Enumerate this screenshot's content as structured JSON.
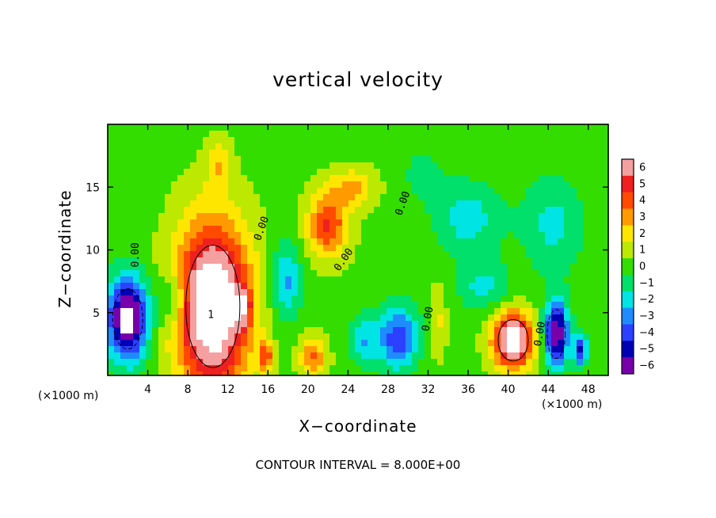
{
  "chart_data": {
    "type": "heatmap",
    "title": "vertical velocity",
    "xlabel": "X−coordinate",
    "ylabel": "Z−coordinate",
    "x_unit_left": "(×1000 m)",
    "x_unit_right": "(×1000 m)",
    "footer": "CONTOUR INTERVAL = 8.000E+00",
    "xlim": [
      0,
      50
    ],
    "ylim": [
      0,
      20
    ],
    "x_ticks": [
      4,
      8,
      12,
      16,
      20,
      24,
      28,
      32,
      36,
      40,
      44,
      48
    ],
    "y_ticks": [
      5,
      10,
      15
    ],
    "colorbar": {
      "labels": [
        "6",
        "5",
        "4",
        "3",
        "2",
        "1",
        "0",
        "−1",
        "−2",
        "−3",
        "−4",
        "−5",
        "−6"
      ],
      "values": [
        6,
        5,
        4,
        3,
        2,
        1,
        0,
        -1,
        -2,
        -3,
        -4,
        -5,
        -6
      ],
      "colors": [
        "#f4a0a0",
        "#ef2020",
        "#ff4a00",
        "#ff9a00",
        "#ffe600",
        "#bde800",
        "#33dd00",
        "#00e06a",
        "#00e4e4",
        "#1e8cff",
        "#2c40ff",
        "#0000b4",
        "#7800aa"
      ]
    },
    "contour_labels": [
      {
        "text": "0.00",
        "x": 2.8,
        "y": 9.6,
        "angle": -90
      },
      {
        "text": "0.00",
        "x": 15.4,
        "y": 11.7,
        "angle": -70
      },
      {
        "text": "0.00",
        "x": 23.6,
        "y": 9.2,
        "angle": -55
      },
      {
        "text": "0.00",
        "x": 29.5,
        "y": 13.7,
        "angle": -70
      },
      {
        "text": "0.00",
        "x": 32.0,
        "y": 4.5,
        "angle": -80
      },
      {
        "text": "0.00",
        "x": 43.2,
        "y": 3.3,
        "angle": -80
      },
      {
        "text": "1",
        "x": 10.3,
        "y": 4.8,
        "angle": 0
      }
    ],
    "features": [
      {
        "type": "updraft",
        "x": 10.5,
        "y": 5.5,
        "rx": 3.6,
        "ry": 6.5,
        "value": 9
      },
      {
        "type": "updraft",
        "x": 40.5,
        "y": 2.8,
        "rx": 2.0,
        "ry": 2.2,
        "value": 8
      },
      {
        "type": "updraft",
        "x": 22.0,
        "y": 12.0,
        "rx": 2.0,
        "ry": 2.5,
        "value": 4.5
      },
      {
        "type": "updraft",
        "x": 11.0,
        "y": 16.8,
        "rx": 1.2,
        "ry": 2.0,
        "value": 2
      },
      {
        "type": "updraft",
        "x": 24.5,
        "y": 15.0,
        "rx": 2.2,
        "ry": 1.5,
        "value": 2.5
      },
      {
        "type": "updraft",
        "x": 20.5,
        "y": 1.5,
        "rx": 1.3,
        "ry": 1.5,
        "value": 3.5
      },
      {
        "type": "updraft",
        "x": 15.8,
        "y": 1.5,
        "rx": 0.7,
        "ry": 1.2,
        "value": 4
      },
      {
        "type": "updraft",
        "x": 33.0,
        "y": 4.5,
        "rx": 0.8,
        "ry": 3.0,
        "value": 1.5
      },
      {
        "type": "updraft",
        "x": 13.5,
        "y": 5.5,
        "rx": 0.8,
        "ry": 1.5,
        "value": 3
      },
      {
        "type": "downdraft",
        "x": 2.0,
        "y": 4.5,
        "rx": 2.0,
        "ry": 3.2,
        "value": -8
      },
      {
        "type": "downdraft",
        "x": 44.8,
        "y": 3.3,
        "rx": 1.2,
        "ry": 2.6,
        "value": -7
      },
      {
        "type": "downdraft",
        "x": 47.2,
        "y": 2.0,
        "rx": 0.7,
        "ry": 1.2,
        "value": -5
      },
      {
        "type": "downdraft",
        "x": 29.0,
        "y": 3.0,
        "rx": 2.0,
        "ry": 2.5,
        "value": -4.5
      },
      {
        "type": "downdraft",
        "x": 17.8,
        "y": 7.5,
        "rx": 1.5,
        "ry": 3.0,
        "value": -3
      },
      {
        "type": "downdraft",
        "x": 25.5,
        "y": 2.8,
        "rx": 1.5,
        "ry": 2.0,
        "value": -2.5
      },
      {
        "type": "downdraft",
        "x": 37.5,
        "y": 7.0,
        "rx": 2.5,
        "ry": 2.0,
        "value": -2
      },
      {
        "type": "downdraft",
        "x": 36.0,
        "y": 12.5,
        "rx": 3.5,
        "ry": 3.0,
        "value": -2.2
      },
      {
        "type": "downdraft",
        "x": 44.5,
        "y": 12.0,
        "rx": 3.0,
        "ry": 4.0,
        "value": -2
      },
      {
        "type": "downdraft",
        "x": 6.5,
        "y": 6.0,
        "rx": 1.5,
        "ry": 2.0,
        "value": -2.5
      },
      {
        "type": "downdraft",
        "x": 31.5,
        "y": 16.0,
        "rx": 2.0,
        "ry": 2.0,
        "value": -1.2
      }
    ]
  }
}
